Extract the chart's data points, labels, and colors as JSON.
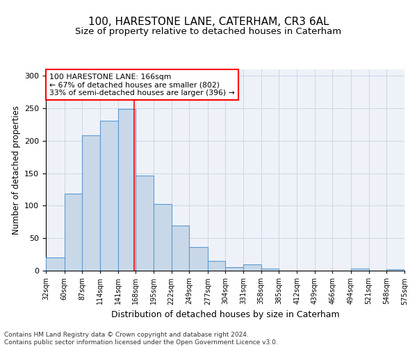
{
  "title": "100, HARESTONE LANE, CATERHAM, CR3 6AL",
  "subtitle": "Size of property relative to detached houses in Caterham",
  "xlabel": "Distribution of detached houses by size in Caterham",
  "ylabel": "Number of detached properties",
  "bar_edges": [
    32,
    60,
    87,
    114,
    141,
    168,
    195,
    222,
    249,
    277,
    304,
    331,
    358,
    385,
    412,
    439,
    466,
    494,
    521,
    548,
    575
  ],
  "bar_heights": [
    20,
    119,
    208,
    231,
    249,
    146,
    103,
    69,
    36,
    15,
    5,
    10,
    3,
    0,
    0,
    0,
    0,
    3,
    0,
    2
  ],
  "bar_color": "#c8d8e8",
  "bar_edgecolor": "#5b9bd5",
  "vline_x": 166,
  "vline_color": "red",
  "annotation_text": "100 HARESTONE LANE: 166sqm\n← 67% of detached houses are smaller (802)\n33% of semi-detached houses are larger (396) →",
  "annotation_box_color": "white",
  "annotation_box_edgecolor": "red",
  "ylim": [
    0,
    310
  ],
  "yticks": [
    0,
    50,
    100,
    150,
    200,
    250,
    300
  ],
  "grid_color": "#d0d8e8",
  "background_color": "#eef2f8",
  "footer_text": "Contains HM Land Registry data © Crown copyright and database right 2024.\nContains public sector information licensed under the Open Government Licence v3.0.",
  "tick_labels": [
    "32sqm",
    "60sqm",
    "87sqm",
    "114sqm",
    "141sqm",
    "168sqm",
    "195sqm",
    "222sqm",
    "249sqm",
    "277sqm",
    "304sqm",
    "331sqm",
    "358sqm",
    "385sqm",
    "412sqm",
    "439sqm",
    "466sqm",
    "494sqm",
    "521sqm",
    "548sqm",
    "575sqm"
  ]
}
